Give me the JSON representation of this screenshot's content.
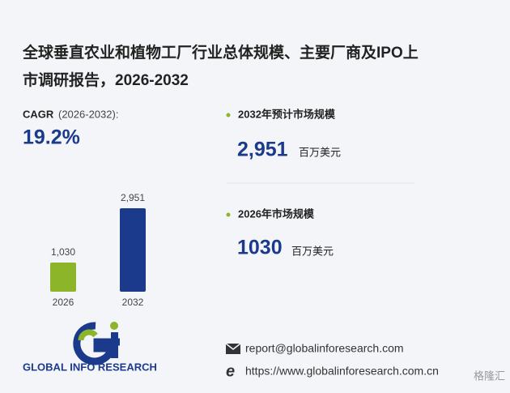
{
  "header": {
    "title_line1": "全球垂直农业和植物工厂行业总体规模、主要厂商及IPO上",
    "title_line2": "市调研报告，2026-2032"
  },
  "cagr": {
    "label": "CAGR",
    "period": "(2026-2032):",
    "value": "19.2%"
  },
  "stats": [
    {
      "label": "2032年预计市场规模",
      "value": "2,951",
      "unit": "百万美元"
    },
    {
      "label": "2026年市场规模",
      "value": "1030",
      "unit": "百万美元"
    }
  ],
  "chart_data": {
    "type": "bar",
    "categories": [
      "2026",
      "2032"
    ],
    "values": [
      1030,
      2951
    ],
    "value_labels": [
      "1,030",
      "2,951"
    ],
    "colors": [
      "#8db52a",
      "#1b3a8c"
    ]
  },
  "footer": {
    "brand": "GLOBAL INFO RESEARCH",
    "email": "report@globalinforesearch.com",
    "website": "https://www.globalinforesearch.com.cn",
    "watermark": "格隆汇"
  }
}
